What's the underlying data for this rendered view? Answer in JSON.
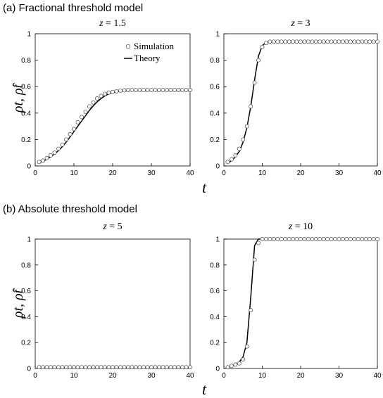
{
  "sections": [
    {
      "label": "(a) Fractional threshold model",
      "xlabel": "t"
    },
    {
      "label": "(b) Absolute threshold model",
      "xlabel": "t"
    }
  ],
  "ylabel": "ρt, ρ̂t",
  "legend": {
    "simulation": "Simulation",
    "theory": "Theory"
  },
  "chart_data": [
    {
      "type": "line",
      "section": 0,
      "title_var": "z",
      "title_val": "= 1.5",
      "xlim": [
        0,
        40
      ],
      "ylim": [
        0,
        1
      ],
      "xticks": [
        0,
        10,
        20,
        30,
        40
      ],
      "yticks": [
        0,
        0.2,
        0.4,
        0.6,
        0.8,
        1
      ],
      "legend": true,
      "series": [
        {
          "name": "Simulation",
          "kind": "markers",
          "x": [
            1,
            2,
            3,
            4,
            5,
            6,
            7,
            8,
            9,
            10,
            11,
            12,
            13,
            14,
            15,
            16,
            17,
            18,
            19,
            20,
            21,
            22,
            23,
            24,
            25,
            26,
            27,
            28,
            29,
            30,
            31,
            32,
            33,
            34,
            35,
            36,
            37,
            38,
            39,
            40
          ],
          "y": [
            0.03,
            0.04,
            0.06,
            0.08,
            0.1,
            0.13,
            0.16,
            0.2,
            0.24,
            0.28,
            0.33,
            0.37,
            0.41,
            0.45,
            0.48,
            0.51,
            0.53,
            0.545,
            0.555,
            0.56,
            0.565,
            0.57,
            0.572,
            0.575,
            0.575,
            0.575,
            0.575,
            0.575,
            0.575,
            0.575,
            0.575,
            0.575,
            0.575,
            0.575,
            0.575,
            0.575,
            0.575,
            0.575,
            0.575,
            0.575
          ]
        },
        {
          "name": "Theory",
          "kind": "line",
          "x": [
            1,
            2,
            3,
            4,
            5,
            6,
            7,
            8,
            9,
            10,
            11,
            12,
            13,
            14,
            15,
            16,
            17,
            18,
            19,
            20,
            21,
            22,
            23,
            24,
            25,
            26,
            27,
            28,
            29,
            30,
            31,
            32,
            33,
            34,
            35,
            36,
            37,
            38,
            39,
            40
          ],
          "y": [
            0.025,
            0.035,
            0.05,
            0.07,
            0.09,
            0.115,
            0.145,
            0.18,
            0.22,
            0.26,
            0.3,
            0.34,
            0.38,
            0.42,
            0.455,
            0.485,
            0.51,
            0.53,
            0.545,
            0.555,
            0.56,
            0.565,
            0.568,
            0.57,
            0.57,
            0.57,
            0.57,
            0.57,
            0.57,
            0.57,
            0.57,
            0.57,
            0.57,
            0.57,
            0.57,
            0.57,
            0.57,
            0.57,
            0.57,
            0.57
          ]
        }
      ]
    },
    {
      "type": "line",
      "section": 0,
      "title_var": "z",
      "title_val": "= 3",
      "xlim": [
        0,
        40
      ],
      "ylim": [
        0,
        1
      ],
      "xticks": [
        0,
        10,
        20,
        30,
        40
      ],
      "yticks": [
        0,
        0.2,
        0.4,
        0.6,
        0.8,
        1
      ],
      "legend": false,
      "series": [
        {
          "name": "Simulation",
          "kind": "markers",
          "x": [
            1,
            2,
            3,
            4,
            5,
            6,
            7,
            8,
            9,
            10,
            11,
            12,
            13,
            14,
            15,
            16,
            17,
            18,
            19,
            20,
            21,
            22,
            23,
            24,
            25,
            26,
            27,
            28,
            29,
            30,
            31,
            32,
            33,
            34,
            35,
            36,
            37,
            38,
            39,
            40
          ],
          "y": [
            0.03,
            0.05,
            0.08,
            0.13,
            0.2,
            0.3,
            0.45,
            0.63,
            0.8,
            0.9,
            0.93,
            0.94,
            0.94,
            0.94,
            0.94,
            0.94,
            0.94,
            0.94,
            0.94,
            0.94,
            0.94,
            0.94,
            0.94,
            0.94,
            0.94,
            0.94,
            0.94,
            0.94,
            0.94,
            0.94,
            0.94,
            0.94,
            0.94,
            0.94,
            0.94,
            0.94,
            0.94,
            0.94,
            0.94,
            0.94
          ]
        },
        {
          "name": "Theory",
          "kind": "line",
          "x": [
            1,
            2,
            3,
            4,
            5,
            6,
            7,
            8,
            9,
            10,
            11,
            12,
            13,
            14,
            15,
            16,
            17,
            18,
            19,
            20,
            21,
            22,
            23,
            24,
            25,
            26,
            27,
            28,
            29,
            30,
            31,
            32,
            33,
            34,
            35,
            36,
            37,
            38,
            39,
            40
          ],
          "y": [
            0.02,
            0.04,
            0.07,
            0.11,
            0.18,
            0.29,
            0.45,
            0.65,
            0.83,
            0.91,
            0.935,
            0.94,
            0.94,
            0.94,
            0.94,
            0.94,
            0.94,
            0.94,
            0.94,
            0.94,
            0.94,
            0.94,
            0.94,
            0.94,
            0.94,
            0.94,
            0.94,
            0.94,
            0.94,
            0.94,
            0.94,
            0.94,
            0.94,
            0.94,
            0.94,
            0.94,
            0.94,
            0.94,
            0.94,
            0.94
          ]
        }
      ]
    },
    {
      "type": "line",
      "section": 1,
      "title_var": "z",
      "title_val": "= 5",
      "xlim": [
        0,
        40
      ],
      "ylim": [
        0,
        1
      ],
      "xticks": [
        0,
        10,
        20,
        30,
        40
      ],
      "yticks": [
        0,
        0.2,
        0.4,
        0.6,
        0.8,
        1
      ],
      "legend": false,
      "series": [
        {
          "name": "Simulation",
          "kind": "markers",
          "x": [
            1,
            2,
            3,
            4,
            5,
            6,
            7,
            8,
            9,
            10,
            11,
            12,
            13,
            14,
            15,
            16,
            17,
            18,
            19,
            20,
            21,
            22,
            23,
            24,
            25,
            26,
            27,
            28,
            29,
            30,
            31,
            32,
            33,
            34,
            35,
            36,
            37,
            38,
            39,
            40
          ],
          "y": [
            0.01,
            0.01,
            0.01,
            0.01,
            0.01,
            0.01,
            0.01,
            0.01,
            0.01,
            0.01,
            0.01,
            0.01,
            0.01,
            0.01,
            0.01,
            0.01,
            0.01,
            0.01,
            0.01,
            0.01,
            0.01,
            0.01,
            0.01,
            0.01,
            0.01,
            0.01,
            0.01,
            0.01,
            0.01,
            0.01,
            0.01,
            0.01,
            0.01,
            0.01,
            0.01,
            0.01,
            0.01,
            0.01,
            0.01,
            0.01
          ]
        },
        {
          "name": "Theory",
          "kind": "line",
          "x": [
            1,
            2,
            3,
            4,
            5,
            6,
            7,
            8,
            9,
            10,
            11,
            12,
            13,
            14,
            15,
            16,
            17,
            18,
            19,
            20,
            21,
            22,
            23,
            24,
            25,
            26,
            27,
            28,
            29,
            30,
            31,
            32,
            33,
            34,
            35,
            36,
            37,
            38,
            39,
            40
          ],
          "y": [
            0.01,
            0.01,
            0.01,
            0.01,
            0.01,
            0.01,
            0.01,
            0.01,
            0.01,
            0.01,
            0.01,
            0.01,
            0.01,
            0.01,
            0.01,
            0.01,
            0.01,
            0.01,
            0.01,
            0.01,
            0.01,
            0.01,
            0.01,
            0.01,
            0.01,
            0.01,
            0.01,
            0.01,
            0.01,
            0.01,
            0.01,
            0.01,
            0.01,
            0.01,
            0.01,
            0.01,
            0.01,
            0.01,
            0.01,
            0.01
          ]
        }
      ]
    },
    {
      "type": "line",
      "section": 1,
      "title_var": "z",
      "title_val": "= 10",
      "xlim": [
        0,
        40
      ],
      "ylim": [
        0,
        1
      ],
      "xticks": [
        0,
        10,
        20,
        30,
        40
      ],
      "yticks": [
        0,
        0.2,
        0.4,
        0.6,
        0.8,
        1
      ],
      "legend": false,
      "series": [
        {
          "name": "Simulation",
          "kind": "markers",
          "x": [
            1,
            2,
            3,
            4,
            5,
            6,
            7,
            8,
            9,
            10,
            11,
            12,
            13,
            14,
            15,
            16,
            17,
            18,
            19,
            20,
            21,
            22,
            23,
            24,
            25,
            26,
            27,
            28,
            29,
            30,
            31,
            32,
            33,
            34,
            35,
            36,
            37,
            38,
            39,
            40
          ],
          "y": [
            0.01,
            0.02,
            0.03,
            0.04,
            0.07,
            0.17,
            0.45,
            0.84,
            0.97,
            1,
            1,
            1,
            1,
            1,
            1,
            1,
            1,
            1,
            1,
            1,
            1,
            1,
            1,
            1,
            1,
            1,
            1,
            1,
            1,
            1,
            1,
            1,
            1,
            1,
            1,
            1,
            1,
            1,
            1,
            1
          ]
        },
        {
          "name": "Theory",
          "kind": "line",
          "x": [
            1,
            2,
            3,
            4,
            5,
            6,
            7,
            8,
            9,
            10,
            11,
            12,
            13,
            14,
            15,
            16,
            17,
            18,
            19,
            20,
            21,
            22,
            23,
            24,
            25,
            26,
            27,
            28,
            29,
            30,
            31,
            32,
            33,
            34,
            35,
            36,
            37,
            38,
            39,
            40
          ],
          "y": [
            0.01,
            0.02,
            0.03,
            0.05,
            0.09,
            0.2,
            0.55,
            0.95,
            1,
            1,
            1,
            1,
            1,
            1,
            1,
            1,
            1,
            1,
            1,
            1,
            1,
            1,
            1,
            1,
            1,
            1,
            1,
            1,
            1,
            1,
            1,
            1,
            1,
            1,
            1,
            1,
            1,
            1,
            1,
            1
          ]
        }
      ]
    }
  ]
}
